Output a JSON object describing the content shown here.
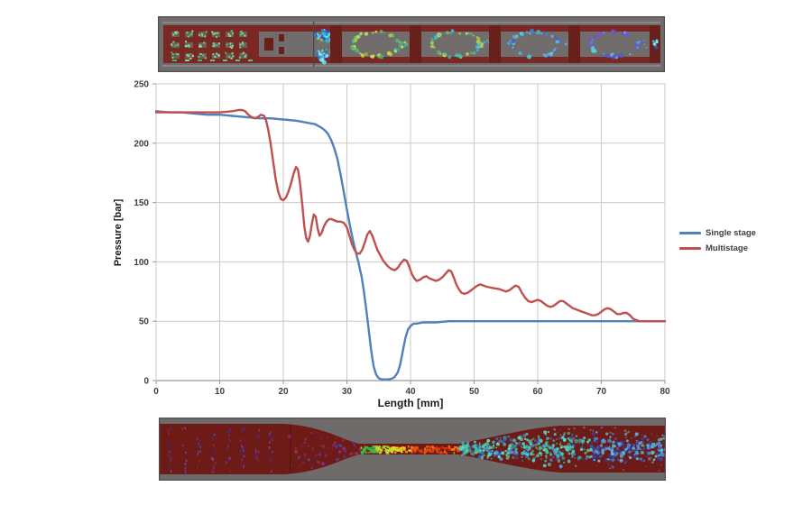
{
  "chart_data": {
    "type": "line",
    "title": "",
    "xlabel": "Length [mm]",
    "ylabel": "Pressure [bar]",
    "xlim": [
      0,
      80
    ],
    "ylim": [
      0,
      250
    ],
    "x_ticks": [
      0,
      10,
      20,
      30,
      40,
      50,
      60,
      70,
      80
    ],
    "y_ticks": [
      0,
      50,
      100,
      150,
      200,
      250
    ],
    "grid": true,
    "legend_position": "right",
    "grid_color": "#cfc9c9",
    "axis_color": "#9c9696",
    "tick_text_color": "#3f3f3f",
    "series": [
      {
        "name": "Single stage",
        "color": "#4f81bd",
        "points": [
          [
            0,
            227
          ],
          [
            2,
            226
          ],
          [
            4,
            226
          ],
          [
            6,
            225
          ],
          [
            8,
            224
          ],
          [
            10,
            224
          ],
          [
            12,
            223
          ],
          [
            14,
            222
          ],
          [
            16,
            221
          ],
          [
            18,
            221
          ],
          [
            20,
            220
          ],
          [
            22,
            219
          ],
          [
            23,
            218
          ],
          [
            24,
            217
          ],
          [
            25,
            216
          ],
          [
            26,
            213
          ],
          [
            26.5,
            211
          ],
          [
            27,
            208
          ],
          [
            27.5,
            203
          ],
          [
            28,
            196
          ],
          [
            28.5,
            187
          ],
          [
            29,
            174
          ],
          [
            29.5,
            159
          ],
          [
            30,
            144
          ],
          [
            30.5,
            130
          ],
          [
            31,
            117
          ],
          [
            31.5,
            106
          ],
          [
            31.8,
            100
          ],
          [
            32,
            95
          ],
          [
            32.3,
            88
          ],
          [
            32.6,
            78
          ],
          [
            33,
            62
          ],
          [
            33.4,
            44
          ],
          [
            33.8,
            26
          ],
          [
            34.2,
            12
          ],
          [
            34.6,
            5
          ],
          [
            35,
            2
          ],
          [
            35.5,
            1
          ],
          [
            36,
            1
          ],
          [
            36.5,
            1
          ],
          [
            37,
            1.5
          ],
          [
            37.5,
            3
          ],
          [
            38,
            7
          ],
          [
            38.4,
            14
          ],
          [
            38.8,
            25
          ],
          [
            39.2,
            36
          ],
          [
            39.6,
            43
          ],
          [
            40,
            46
          ],
          [
            40.5,
            48
          ],
          [
            41,
            48
          ],
          [
            42,
            49
          ],
          [
            43,
            49
          ],
          [
            44,
            49
          ],
          [
            46,
            50
          ],
          [
            48,
            50
          ],
          [
            50,
            50
          ],
          [
            52,
            50
          ],
          [
            54,
            50
          ],
          [
            56,
            50
          ],
          [
            58,
            50
          ],
          [
            60,
            50
          ],
          [
            62,
            50
          ],
          [
            64,
            50
          ],
          [
            66,
            50
          ],
          [
            68,
            50
          ],
          [
            70,
            50
          ],
          [
            72,
            50
          ],
          [
            74,
            50
          ],
          [
            76,
            50
          ],
          [
            78,
            50
          ],
          [
            80,
            50
          ]
        ]
      },
      {
        "name": "Multistage",
        "color": "#c0504d",
        "points": [
          [
            0,
            226
          ],
          [
            2,
            226
          ],
          [
            4,
            226
          ],
          [
            6,
            226
          ],
          [
            8,
            226
          ],
          [
            10,
            226
          ],
          [
            12,
            227
          ],
          [
            13,
            228
          ],
          [
            13.5,
            228
          ],
          [
            14,
            227
          ],
          [
            14.5,
            224
          ],
          [
            15,
            222
          ],
          [
            15.5,
            221
          ],
          [
            16,
            222
          ],
          [
            16.5,
            224
          ],
          [
            17,
            223
          ],
          [
            17.3,
            219
          ],
          [
            17.6,
            212
          ],
          [
            18,
            200
          ],
          [
            18.4,
            185
          ],
          [
            18.8,
            170
          ],
          [
            19.2,
            159
          ],
          [
            19.6,
            153
          ],
          [
            20,
            152
          ],
          [
            20.4,
            154
          ],
          [
            20.8,
            159
          ],
          [
            21.2,
            166
          ],
          [
            21.6,
            174
          ],
          [
            22,
            180
          ],
          [
            22.3,
            178
          ],
          [
            22.6,
            168
          ],
          [
            23,
            148
          ],
          [
            23.3,
            130
          ],
          [
            23.6,
            120
          ],
          [
            23.9,
            117
          ],
          [
            24.2,
            122
          ],
          [
            24.5,
            132
          ],
          [
            24.8,
            140
          ],
          [
            25.1,
            138
          ],
          [
            25.4,
            128
          ],
          [
            25.7,
            122
          ],
          [
            26,
            124
          ],
          [
            26.4,
            130
          ],
          [
            26.8,
            134
          ],
          [
            27.2,
            136
          ],
          [
            27.6,
            136
          ],
          [
            28,
            135
          ],
          [
            28.5,
            134
          ],
          [
            29,
            134
          ],
          [
            29.5,
            133
          ],
          [
            30,
            129
          ],
          [
            30.4,
            122
          ],
          [
            30.8,
            115
          ],
          [
            31.2,
            110
          ],
          [
            31.6,
            107
          ],
          [
            32,
            107
          ],
          [
            32.4,
            110
          ],
          [
            32.8,
            116
          ],
          [
            33.2,
            123
          ],
          [
            33.6,
            126
          ],
          [
            34,
            122
          ],
          [
            34.4,
            116
          ],
          [
            34.8,
            110
          ],
          [
            35.2,
            106
          ],
          [
            35.6,
            102
          ],
          [
            36,
            99
          ],
          [
            36.5,
            96
          ],
          [
            37,
            94
          ],
          [
            37.5,
            93
          ],
          [
            38,
            95
          ],
          [
            38.5,
            99
          ],
          [
            39,
            102
          ],
          [
            39.4,
            101
          ],
          [
            39.8,
            96
          ],
          [
            40.2,
            90
          ],
          [
            40.6,
            86
          ],
          [
            41,
            84
          ],
          [
            41.5,
            85
          ],
          [
            42,
            87
          ],
          [
            42.5,
            88
          ],
          [
            43,
            86
          ],
          [
            43.5,
            85
          ],
          [
            44,
            84
          ],
          [
            44.5,
            85
          ],
          [
            45,
            87
          ],
          [
            45.5,
            90
          ],
          [
            46,
            93
          ],
          [
            46.4,
            92
          ],
          [
            46.8,
            87
          ],
          [
            47.2,
            81
          ],
          [
            47.6,
            77
          ],
          [
            48,
            74
          ],
          [
            48.5,
            73
          ],
          [
            49,
            74
          ],
          [
            49.5,
            76
          ],
          [
            50,
            78
          ],
          [
            50.5,
            80
          ],
          [
            51,
            81
          ],
          [
            51.5,
            80
          ],
          [
            52,
            79
          ],
          [
            53,
            78
          ],
          [
            54,
            77
          ],
          [
            54.5,
            76
          ],
          [
            55,
            75
          ],
          [
            55.5,
            76
          ],
          [
            56,
            78
          ],
          [
            56.5,
            80
          ],
          [
            57,
            79
          ],
          [
            57.5,
            74
          ],
          [
            58,
            70
          ],
          [
            58.5,
            67
          ],
          [
            59,
            66
          ],
          [
            59.5,
            67
          ],
          [
            60,
            68
          ],
          [
            60.5,
            67
          ],
          [
            61,
            65
          ],
          [
            61.5,
            63
          ],
          [
            62,
            62
          ],
          [
            62.5,
            63
          ],
          [
            63,
            65
          ],
          [
            63.5,
            67
          ],
          [
            64,
            67
          ],
          [
            64.5,
            65
          ],
          [
            65,
            63
          ],
          [
            65.5,
            61
          ],
          [
            66,
            60
          ],
          [
            66.5,
            59
          ],
          [
            67,
            58
          ],
          [
            67.5,
            57
          ],
          [
            68,
            56
          ],
          [
            68.5,
            55
          ],
          [
            69,
            55
          ],
          [
            69.5,
            56
          ],
          [
            70,
            58
          ],
          [
            70.5,
            60
          ],
          [
            71,
            61
          ],
          [
            71.5,
            60
          ],
          [
            72,
            58
          ],
          [
            72.5,
            56
          ],
          [
            73,
            56
          ],
          [
            73.5,
            57
          ],
          [
            74,
            57
          ],
          [
            74.5,
            55
          ],
          [
            75,
            52
          ],
          [
            75.5,
            51
          ],
          [
            76,
            50
          ],
          [
            77,
            50
          ],
          [
            78,
            50
          ],
          [
            79,
            50
          ],
          [
            80,
            50
          ]
        ]
      }
    ]
  },
  "cfd_top": {
    "bg": "#716d6d",
    "frame": "#55504f",
    "rail": "#8a8686",
    "body": "#7a2823",
    "body_dark": "#68201b",
    "slot": "#6d6a6a",
    "boundary_line": "#4a4848",
    "inlet_glyph_colors": [
      "#5ed47e",
      "#7adb8e",
      "#46c06a",
      "#8fe6a0"
    ],
    "swirl_colors": [
      "#39b7e8",
      "#2f7fd4",
      "#64d9f0",
      "#2a55c0",
      "#7fe4ee"
    ],
    "stage_palettes": [
      [
        "#c8d23c",
        "#8fc643",
        "#5bbf6a",
        "#d8e060",
        "#3db39a"
      ],
      [
        "#a6cf45",
        "#56c06a",
        "#3fbfae",
        "#cddc4e",
        "#45b7d8"
      ],
      [
        "#49c2d8",
        "#52b7e8",
        "#3f7fd8",
        "#77d3c4",
        "#4e58c8"
      ],
      [
        "#4a61d0",
        "#6a4fc8",
        "#44a8e0",
        "#5ad0d8",
        "#7a4fd8"
      ]
    ]
  },
  "cfd_bottom": {
    "bg": "#6f6b6b",
    "frame": "#55504f",
    "nozzle": "#6e1a16",
    "zone_line": "#52150f",
    "vector_colors": [
      "#3939a8",
      "#5548c0",
      "#2e2e8e",
      "#7a58d0",
      "#a03040"
    ],
    "converge_colors": [
      "#7a3ab0",
      "#5548c0",
      "#b03838",
      "#3858b8",
      "#8a2a80"
    ],
    "jet_colors": [
      "#3bb84a",
      "#b8d832",
      "#f0e020",
      "#f09018",
      "#e85010",
      "#e03808",
      "#f07818"
    ],
    "cloud_colors": [
      "#39c87e",
      "#3fc8c8",
      "#48a0e0",
      "#60d8b0",
      "#2f68c8",
      "#50e0d0"
    ],
    "tail_colors": [
      "#3848b8",
      "#4878d8",
      "#48a8e8",
      "#60c8e8",
      "#2f3f9e",
      "#52c8c0"
    ]
  }
}
